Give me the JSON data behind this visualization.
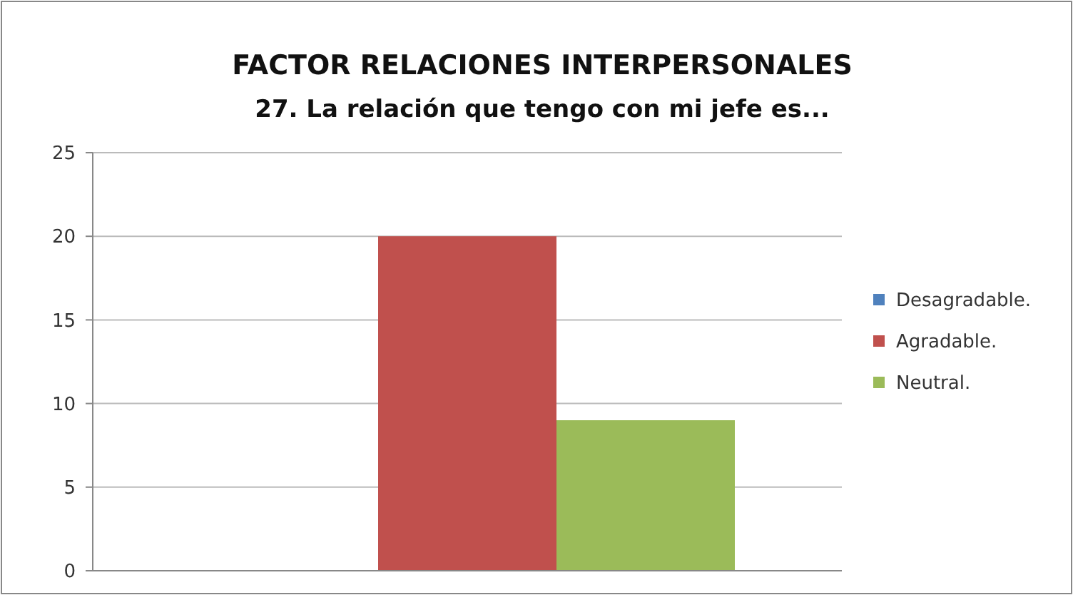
{
  "chart_data": {
    "type": "bar",
    "title": "FACTOR RELACIONES INTERPERSONALES",
    "subtitle": "27. La relación que tengo con mi jefe es...",
    "categories": [
      null
    ],
    "series": [
      {
        "name": "Desagradable.",
        "color": "#4f81bd",
        "values": [
          0
        ]
      },
      {
        "name": "Agradable.",
        "color": "#c0504d",
        "values": [
          20
        ]
      },
      {
        "name": "Neutral.",
        "color": "#9bbb59",
        "values": [
          9
        ]
      }
    ],
    "ylim": [
      0,
      25
    ],
    "yticks": [
      0,
      5,
      10,
      15,
      20,
      25
    ],
    "grid": "y",
    "legend": "right"
  }
}
